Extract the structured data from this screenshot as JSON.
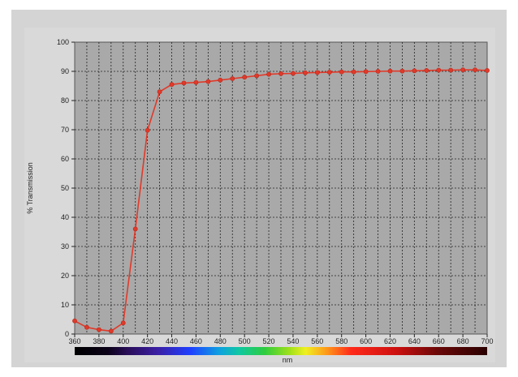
{
  "chart_data": {
    "type": "line",
    "title": "",
    "xlabel": "nm",
    "ylabel": "% Transmission",
    "xlim": [
      360,
      700
    ],
    "ylim": [
      0,
      100
    ],
    "x_ticks": [
      360,
      380,
      400,
      420,
      440,
      460,
      480,
      500,
      520,
      540,
      560,
      580,
      600,
      620,
      640,
      660,
      680,
      700
    ],
    "y_ticks": [
      0,
      10,
      20,
      30,
      40,
      50,
      60,
      70,
      80,
      90,
      100
    ],
    "grid": true,
    "legend": "none",
    "spectrum_bar": true,
    "series": [
      {
        "color": "#e03a2a",
        "x": [
          360,
          370,
          380,
          390,
          400,
          410,
          420,
          430,
          440,
          450,
          460,
          470,
          480,
          490,
          500,
          510,
          520,
          530,
          540,
          550,
          560,
          570,
          580,
          590,
          600,
          610,
          620,
          630,
          640,
          650,
          660,
          670,
          680,
          690,
          700
        ],
        "y": [
          4.5,
          2.3,
          1.5,
          1.0,
          3.8,
          36.0,
          69.8,
          83.0,
          85.5,
          86.0,
          86.2,
          86.5,
          87.0,
          87.5,
          88.0,
          88.5,
          89.0,
          89.2,
          89.3,
          89.5,
          89.6,
          89.7,
          89.8,
          89.8,
          89.9,
          90.0,
          90.1,
          90.1,
          90.2,
          90.3,
          90.4,
          90.4,
          90.5,
          90.5,
          90.3
        ]
      }
    ]
  }
}
